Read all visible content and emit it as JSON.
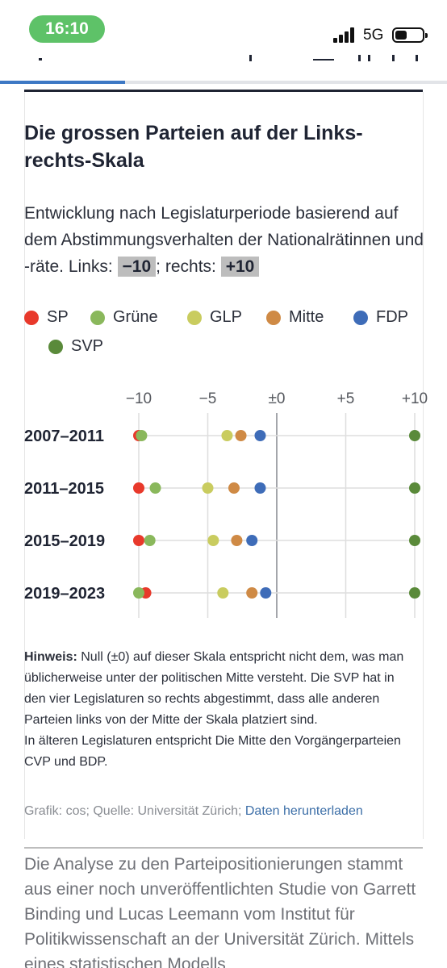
{
  "status_bar": {
    "time": "16:10",
    "network": "5G"
  },
  "reading_progress": 0.28,
  "title": "Die grossen Parteien auf der Links-rechts-Skala",
  "subtitle": {
    "text_before": "Entwicklung nach Legislaturperiode basierend auf dem Abstimmungsverhalten der Nationalrätinnen und -räte. Links: ",
    "left_value": "−10",
    "text_middle": "; rechts: ",
    "right_value": "+10"
  },
  "colors": {
    "SP": "#e8392b",
    "Grüne": "#8ab85c",
    "GLP": "#c9cc5f",
    "Mitte": "#cf8a45",
    "FDP": "#3e6cb8",
    "SVP": "#5a8a3a"
  },
  "legend": [
    "SP",
    "Grüne",
    "GLP",
    "Mitte",
    "FDP",
    "SVP"
  ],
  "chart_data": {
    "type": "scatter",
    "title": "Die grossen Parteien auf der Links-rechts-Skala",
    "xlim": [
      -10,
      10
    ],
    "x_ticks": [
      {
        "value": -10,
        "label": "−10"
      },
      {
        "value": -5,
        "label": "−5"
      },
      {
        "value": 0,
        "label": "±0"
      },
      {
        "value": 5,
        "label": "+5"
      },
      {
        "value": 10,
        "label": "+10"
      }
    ],
    "categories": [
      "2007–2011",
      "2011–2015",
      "2015–2019",
      "2019–2023"
    ],
    "series": [
      {
        "name": "SP",
        "values": [
          -10.0,
          -10.0,
          -10.0,
          -9.5
        ]
      },
      {
        "name": "Grüne",
        "values": [
          -9.8,
          -8.8,
          -9.2,
          -10.0
        ]
      },
      {
        "name": "GLP",
        "values": [
          -3.6,
          -5.0,
          -4.6,
          -3.9
        ]
      },
      {
        "name": "Mitte",
        "values": [
          -2.6,
          -3.1,
          -2.9,
          -1.8
        ]
      },
      {
        "name": "FDP",
        "values": [
          -1.2,
          -1.2,
          -1.8,
          -0.8
        ]
      },
      {
        "name": "SVP",
        "values": [
          10.0,
          10.0,
          10.0,
          10.0
        ]
      }
    ],
    "grid": true,
    "legend_position": "top"
  },
  "note": {
    "label": "Hinweis:",
    "text": " Null (±0) auf dieser Skala entspricht nicht dem, was man üblicherweise unter der politischen Mitte versteht. Die SVP hat in den vier Legislaturen so rechts abgestimmt, dass alle anderen Parteien links von der Mitte der Skala platziert sind.",
    "text2": "In älteren Legislaturen entspricht Die Mitte den Vorgängerparteien CVP und BDP."
  },
  "credit": {
    "text": "Grafik: cos; Quelle: Universität Zürich; ",
    "link": "Daten herunterladen"
  },
  "article_text": "Die Analyse zu den Parteipositionierungen stammt aus einer noch unveröffentlichten Studie von Garrett Binding und Lucas Leemann vom Institut für Politikwissenschaft an der Universität Zürich. Mittels eines statistischen Modells"
}
